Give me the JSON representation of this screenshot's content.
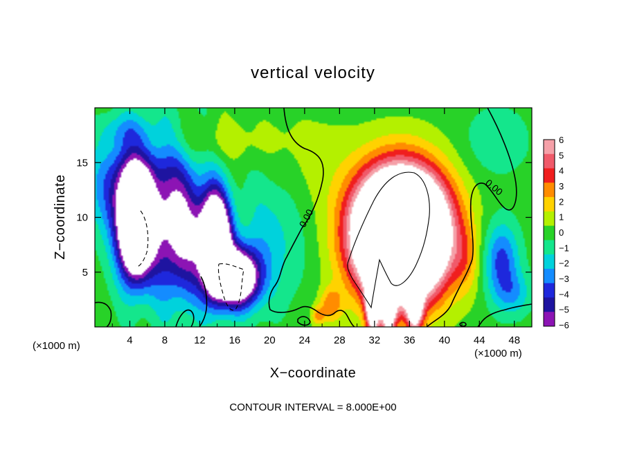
{
  "chart_data": {
    "type": "heatmap",
    "title": "vertical velocity",
    "xlabel": "X−coordinate",
    "ylabel": "Z−coordinate",
    "x_unit": "(×1000 m)",
    "y_unit": "(×1000 m)",
    "footnote": "CONTOUR INTERVAL = 8.000E+00",
    "xlim": [
      0,
      50
    ],
    "ylim": [
      0,
      20
    ],
    "x_ticks": [
      4,
      8,
      12,
      16,
      20,
      24,
      28,
      32,
      36,
      40,
      44,
      48
    ],
    "x_tick_labels": [
      "4",
      "8",
      "12",
      "16",
      "20",
      "24",
      "28",
      "32",
      "36",
      "40",
      "44",
      "48"
    ],
    "y_ticks": [
      5,
      10,
      15
    ],
    "y_tick_labels": [
      "5",
      "10",
      "15"
    ],
    "contour_labels": [
      "0.00",
      "0.00"
    ],
    "colorbar": {
      "levels": [
        6,
        5,
        4,
        3,
        2,
        1,
        0,
        -1,
        -2,
        -3,
        -4,
        -5,
        -6
      ],
      "labels": [
        "6",
        "5",
        "4",
        "3",
        "2",
        "1",
        "0",
        "−1",
        "−2",
        "−3",
        "−4",
        "−5",
        "−6"
      ],
      "colors": [
        "#f5a0a8",
        "#f05a6a",
        "#f01e1e",
        "#ff8c00",
        "#ffd200",
        "#b4f000",
        "#28d228",
        "#14e68c",
        "#00d2dc",
        "#148cff",
        "#1e28dc",
        "#1e14a0",
        "#8c14b4"
      ]
    },
    "features": [
      {
        "kind": "updraft",
        "center": [
          35,
          8.5
        ],
        "peak": 26
      },
      {
        "kind": "downdraft",
        "center": [
          4.5,
          9
        ],
        "peak": -14
      },
      {
        "kind": "downdraft",
        "center": [
          14,
          7
        ],
        "peak": -16
      },
      {
        "kind": "downdraft",
        "center": [
          46,
          6
        ],
        "peak": -4
      }
    ]
  }
}
